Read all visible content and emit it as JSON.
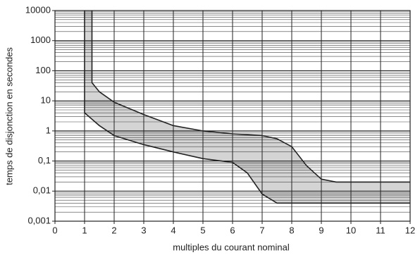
{
  "chart_data": {
    "type": "band",
    "x_label": "multiples du courant nominal",
    "y_label": "temps de disjonction en secondes",
    "xlim": [
      0,
      12
    ],
    "xticks": [
      0,
      1,
      2,
      3,
      4,
      5,
      6,
      7,
      8,
      9,
      10,
      11,
      12
    ],
    "ylim": [
      0.001,
      10000
    ],
    "yticks": [
      {
        "value": 0.001,
        "label": "0,001"
      },
      {
        "value": 0.01,
        "label": "0,01"
      },
      {
        "value": 0.1,
        "label": "0,1"
      },
      1,
      10,
      100,
      1000,
      10000
    ],
    "log_y": true,
    "grid": true,
    "fill_color": "#d4d4d4",
    "line_color": "#222222",
    "series": [
      {
        "x": [
          1.25,
          1.25,
          1.5,
          2,
          3,
          4,
          5,
          6,
          7,
          7.5,
          8,
          8.5,
          9,
          9.5,
          12
        ],
        "values": [
          10000,
          40,
          20,
          9,
          3.5,
          1.5,
          1,
          0.8,
          0.7,
          0.55,
          0.3,
          0.07,
          0.025,
          0.02,
          0.02
        ]
      },
      {
        "x": [
          1,
          1,
          1.5,
          2,
          3,
          4,
          5,
          6,
          6.5,
          7,
          7.5,
          8,
          12
        ],
        "values": [
          10000,
          4,
          1.5,
          0.7,
          0.35,
          0.2,
          0.12,
          0.09,
          0.04,
          0.008,
          0.004,
          0.004,
          0.004
        ]
      }
    ]
  }
}
